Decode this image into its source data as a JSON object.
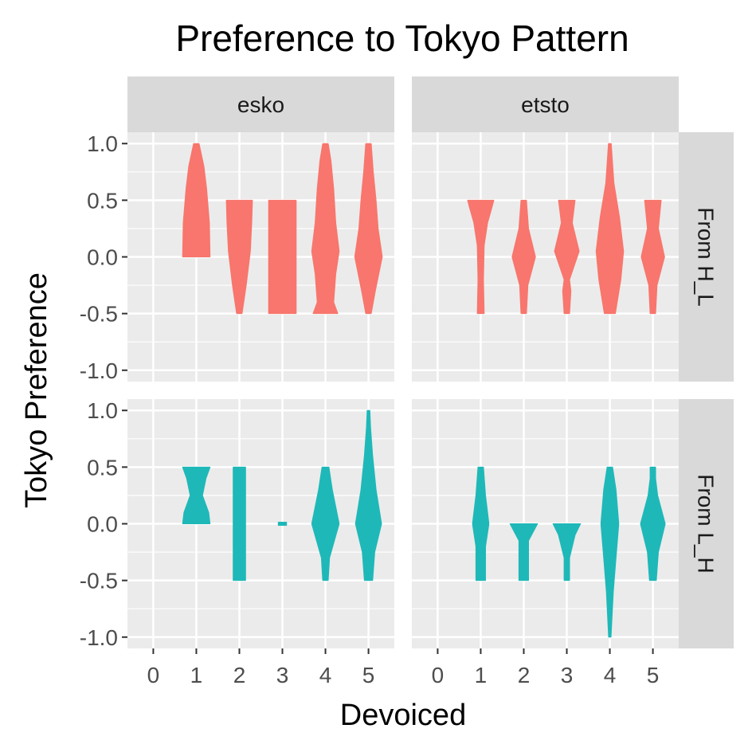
{
  "chart_data": {
    "type": "violin",
    "title": "Preference to Tokyo Pattern",
    "xlabel": "Devoiced",
    "ylabel": "Tokyo Preference",
    "x_categories": [
      "0",
      "1",
      "2",
      "3",
      "4",
      "5"
    ],
    "y_ticks": [
      "-1.0",
      "-0.5",
      "0.0",
      "0.5",
      "1.0"
    ],
    "ylim": [
      -1.1,
      1.1
    ],
    "grid": true,
    "facet_columns": [
      "esko",
      "etsto"
    ],
    "facet_rows": [
      "From H_L",
      "From L_H"
    ],
    "row_colors": {
      "From H_L": "#F8766D",
      "From L_H": "#1FB8B8"
    },
    "panels": [
      {
        "column": "esko",
        "row": "From H_L",
        "violins": [
          {
            "x": 1,
            "profile": [
              [
                0,
                1.0
              ],
              [
                0.3,
                0.95
              ],
              [
                0.6,
                0.75
              ],
              [
                0.8,
                0.55
              ],
              [
                1.0,
                0.2
              ]
            ]
          },
          {
            "x": 2,
            "profile": [
              [
                -0.5,
                0.2
              ],
              [
                -0.25,
                0.5
              ],
              [
                0.05,
                0.8
              ],
              [
                0.3,
                0.9
              ],
              [
                0.5,
                0.95
              ]
            ]
          },
          {
            "x": 3,
            "profile": [
              [
                -0.5,
                1.0
              ],
              [
                0.5,
                1.0
              ]
            ]
          },
          {
            "x": 4,
            "profile": [
              [
                -0.5,
                0.9
              ],
              [
                -0.4,
                0.6
              ],
              [
                -0.15,
                0.75
              ],
              [
                0.05,
                1.0
              ],
              [
                0.3,
                0.75
              ],
              [
                0.6,
                0.6
              ],
              [
                0.85,
                0.4
              ],
              [
                1.0,
                0.2
              ]
            ]
          },
          {
            "x": 5,
            "profile": [
              [
                -0.5,
                0.2
              ],
              [
                -0.3,
                0.5
              ],
              [
                0.0,
                1.0
              ],
              [
                0.25,
                0.7
              ],
              [
                0.5,
                0.55
              ],
              [
                0.75,
                0.35
              ],
              [
                1.0,
                0.2
              ]
            ]
          }
        ]
      },
      {
        "column": "etsto",
        "row": "From H_L",
        "violins": [
          {
            "x": 1,
            "profile": [
              [
                -0.5,
                0.25
              ],
              [
                -0.2,
                0.2
              ],
              [
                0.1,
                0.25
              ],
              [
                0.3,
                0.5
              ],
              [
                0.45,
                0.85
              ],
              [
                0.5,
                0.95
              ]
            ]
          },
          {
            "x": 2,
            "profile": [
              [
                -0.5,
                0.2
              ],
              [
                -0.25,
                0.3
              ],
              [
                0.0,
                0.85
              ],
              [
                0.25,
                0.35
              ],
              [
                0.5,
                0.2
              ]
            ]
          },
          {
            "x": 3,
            "profile": [
              [
                -0.5,
                0.2
              ],
              [
                -0.3,
                0.3
              ],
              [
                -0.2,
                0.2
              ],
              [
                0.05,
                0.9
              ],
              [
                0.3,
                0.4
              ],
              [
                0.5,
                0.6
              ]
            ]
          },
          {
            "x": 4,
            "profile": [
              [
                -0.5,
                0.4
              ],
              [
                -0.2,
                0.8
              ],
              [
                0.05,
                1.0
              ],
              [
                0.35,
                0.7
              ],
              [
                0.65,
                0.3
              ],
              [
                1.0,
                0.1
              ]
            ]
          },
          {
            "x": 5,
            "profile": [
              [
                -0.5,
                0.2
              ],
              [
                -0.25,
                0.3
              ],
              [
                0.0,
                0.85
              ],
              [
                0.25,
                0.4
              ],
              [
                0.5,
                0.6
              ]
            ]
          }
        ]
      },
      {
        "column": "esko",
        "row": "From L_H",
        "violins": [
          {
            "x": 1,
            "profile": [
              [
                0,
                1.0
              ],
              [
                0.1,
                0.9
              ],
              [
                0.25,
                0.45
              ],
              [
                0.4,
                0.7
              ],
              [
                0.5,
                1.0
              ]
            ]
          },
          {
            "x": 2,
            "profile": [
              [
                -0.5,
                0.45
              ],
              [
                0.5,
                0.45
              ]
            ]
          },
          {
            "x": 3,
            "profile": [
              [
                -0.01,
                0.3
              ],
              [
                0.01,
                0.3
              ]
            ]
          },
          {
            "x": 4,
            "profile": [
              [
                -0.5,
                0.2
              ],
              [
                -0.3,
                0.3
              ],
              [
                0.0,
                1.0
              ],
              [
                0.3,
                0.5
              ],
              [
                0.5,
                0.25
              ]
            ]
          },
          {
            "x": 5,
            "profile": [
              [
                -0.5,
                0.3
              ],
              [
                -0.25,
                0.45
              ],
              [
                0.0,
                0.95
              ],
              [
                0.3,
                0.55
              ],
              [
                0.6,
                0.3
              ],
              [
                0.85,
                0.15
              ],
              [
                1.0,
                0.1
              ]
            ]
          }
        ]
      },
      {
        "column": "etsto",
        "row": "From L_H",
        "violins": [
          {
            "x": 1,
            "profile": [
              [
                -0.5,
                0.35
              ],
              [
                -0.2,
                0.35
              ],
              [
                0.0,
                0.6
              ],
              [
                0.25,
                0.35
              ],
              [
                0.5,
                0.2
              ]
            ]
          },
          {
            "x": 2,
            "profile": [
              [
                -0.5,
                0.35
              ],
              [
                -0.3,
                0.35
              ],
              [
                -0.15,
                0.35
              ],
              [
                0.0,
                1.0
              ]
            ]
          },
          {
            "x": 3,
            "profile": [
              [
                -0.5,
                0.2
              ],
              [
                -0.3,
                0.2
              ],
              [
                -0.1,
                0.6
              ],
              [
                0.0,
                1.0
              ]
            ]
          },
          {
            "x": 4,
            "profile": [
              [
                -1.0,
                0.05
              ],
              [
                -0.6,
                0.25
              ],
              [
                -0.3,
                0.45
              ],
              [
                0.0,
                0.65
              ],
              [
                0.3,
                0.45
              ],
              [
                0.5,
                0.2
              ]
            ]
          },
          {
            "x": 5,
            "profile": [
              [
                -0.5,
                0.25
              ],
              [
                -0.25,
                0.4
              ],
              [
                0.0,
                0.9
              ],
              [
                0.25,
                0.35
              ],
              [
                0.4,
                0.2
              ],
              [
                0.5,
                0.2
              ]
            ]
          }
        ]
      }
    ]
  }
}
